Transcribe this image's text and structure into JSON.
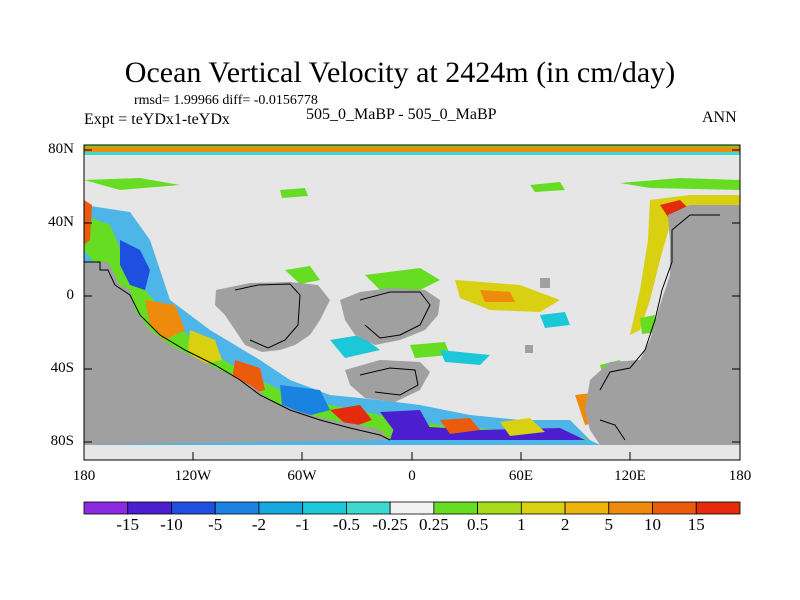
{
  "header": {
    "title": "Ocean Vertical Velocity at 2424m (in cm/day)",
    "stats": "rmsd= 1.99966 diff= -0.0156778",
    "expt": "Expt = teYDx1-teYDx",
    "case": "505_0_MaBP - 505_0_MaBP",
    "season": "ANN"
  },
  "map": {
    "lat_labels": [
      "80N",
      "40N",
      "0",
      "40S",
      "80S"
    ],
    "lon_labels": [
      "180",
      "120W",
      "60W",
      "0",
      "60E",
      "120E",
      "180"
    ],
    "colors": {
      "land": "#a0a0a0",
      "neutral_ocean": "#e6e6e6",
      "coast_line": "#000000"
    }
  },
  "colorbar": {
    "levels": [
      "-15",
      "-10",
      "-5",
      "-2",
      "-1",
      "-0.5",
      "-0.25",
      "0.25",
      "0.5",
      "1",
      "2",
      "5",
      "10",
      "15"
    ],
    "colors": [
      "#8a2be2",
      "#4b1fd0",
      "#1f4fe0",
      "#1a82e0",
      "#18a8e0",
      "#1cc8d8",
      "#3dd8d0",
      "#f2f2f2",
      "#66dd22",
      "#a8dc1a",
      "#d8d010",
      "#ecb40c",
      "#ee8a0c",
      "#ec5a0c",
      "#e62a0c"
    ]
  }
}
